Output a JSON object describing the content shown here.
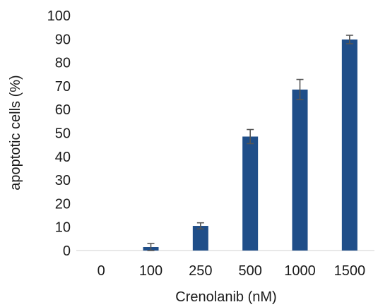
{
  "chart_data": {
    "type": "bar",
    "title": "",
    "xlabel": "Crenolanib (nM)",
    "ylabel": "apoptotic cells (%)",
    "categories": [
      "0",
      "100",
      "250",
      "500",
      "1000",
      "1500"
    ],
    "values": [
      0,
      1.5,
      10.5,
      48.5,
      68.5,
      89.8
    ],
    "errors": [
      0,
      1.5,
      1.3,
      3.0,
      4.3,
      1.8
    ],
    "ylim": [
      0,
      100
    ],
    "yticks": [
      0,
      10,
      20,
      30,
      40,
      50,
      60,
      70,
      80,
      90,
      100
    ],
    "grid": false,
    "legend": "none",
    "bar_color": "#1f4e89",
    "error_color": "#555555"
  }
}
